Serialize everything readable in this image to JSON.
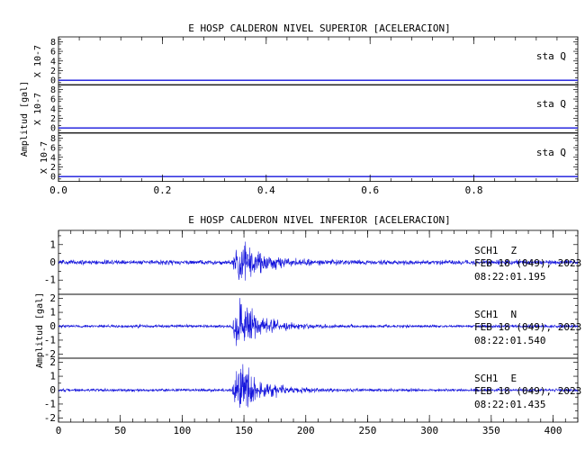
{
  "colors": {
    "trace": "#1414dc",
    "axes": "#000000",
    "background": "#ffffff"
  },
  "chart_data": [
    {
      "type": "line",
      "title": "E HOSP CALDERON NIVEL SUPERIOR [ACELERACION]",
      "ylabel": "Amplitud [gal]",
      "scale_label": "X 10-7",
      "xlim": [
        0,
        1
      ],
      "xticks": [
        0.0,
        0.2,
        0.4,
        0.6,
        0.8
      ],
      "xtick_labels": [
        "0.0",
        "0.2",
        "0.4",
        "0.6",
        "0.8"
      ],
      "grid": false,
      "channels": [
        {
          "label": "sta   Q",
          "ylim": [
            -1,
            9
          ],
          "yticks": [
            0,
            2,
            4,
            6,
            8
          ],
          "values": [
            0,
            0
          ]
        },
        {
          "label": "sta   Q",
          "ylim": [
            -1,
            9
          ],
          "yticks": [
            0,
            2,
            4,
            6,
            8
          ],
          "values": [
            0,
            0
          ]
        },
        {
          "label": "sta   Q",
          "ylim": [
            -1,
            9
          ],
          "yticks": [
            0,
            2,
            4,
            6,
            8
          ],
          "values": [
            0,
            0
          ]
        }
      ]
    },
    {
      "type": "line",
      "title": "E HOSP CALDERON NIVEL INFERIOR [ACELERACION]",
      "ylabel": "Amplitud [gal]",
      "xlim": [
        0,
        420
      ],
      "xticks": [
        0,
        50,
        100,
        150,
        200,
        250,
        300,
        350,
        400
      ],
      "xtick_labels": [
        "0",
        "50",
        "100",
        "150",
        "200",
        "250",
        "300",
        "350",
        "400"
      ],
      "grid": false,
      "channels": [
        {
          "station": "SCH1",
          "component": "Z",
          "date": "FEB 18 (049), 2023",
          "time": "08:22:01.195",
          "ylim": [
            -1.8,
            1.8
          ],
          "yticks": [
            -1,
            0,
            1
          ],
          "noise_amplitude": 0.06,
          "event_onset": 140,
          "peak_amplitude": 1.45
        },
        {
          "station": "SCH1",
          "component": "N",
          "date": "FEB 18 (049), 2023",
          "time": "08:22:01.540",
          "ylim": [
            -2.3,
            2.3
          ],
          "yticks": [
            -2,
            -1,
            0,
            1,
            2
          ],
          "noise_amplitude": 0.05,
          "event_onset": 140,
          "peak_amplitude": 2.2
        },
        {
          "station": "SCH1",
          "component": "E",
          "date": "FEB 18 (049), 2023",
          "time": "08:22:01.435",
          "ylim": [
            -2.3,
            2.3
          ],
          "yticks": [
            -2,
            -1,
            0,
            1,
            2
          ],
          "noise_amplitude": 0.05,
          "event_onset": 140,
          "peak_amplitude": 2.2
        }
      ]
    }
  ]
}
